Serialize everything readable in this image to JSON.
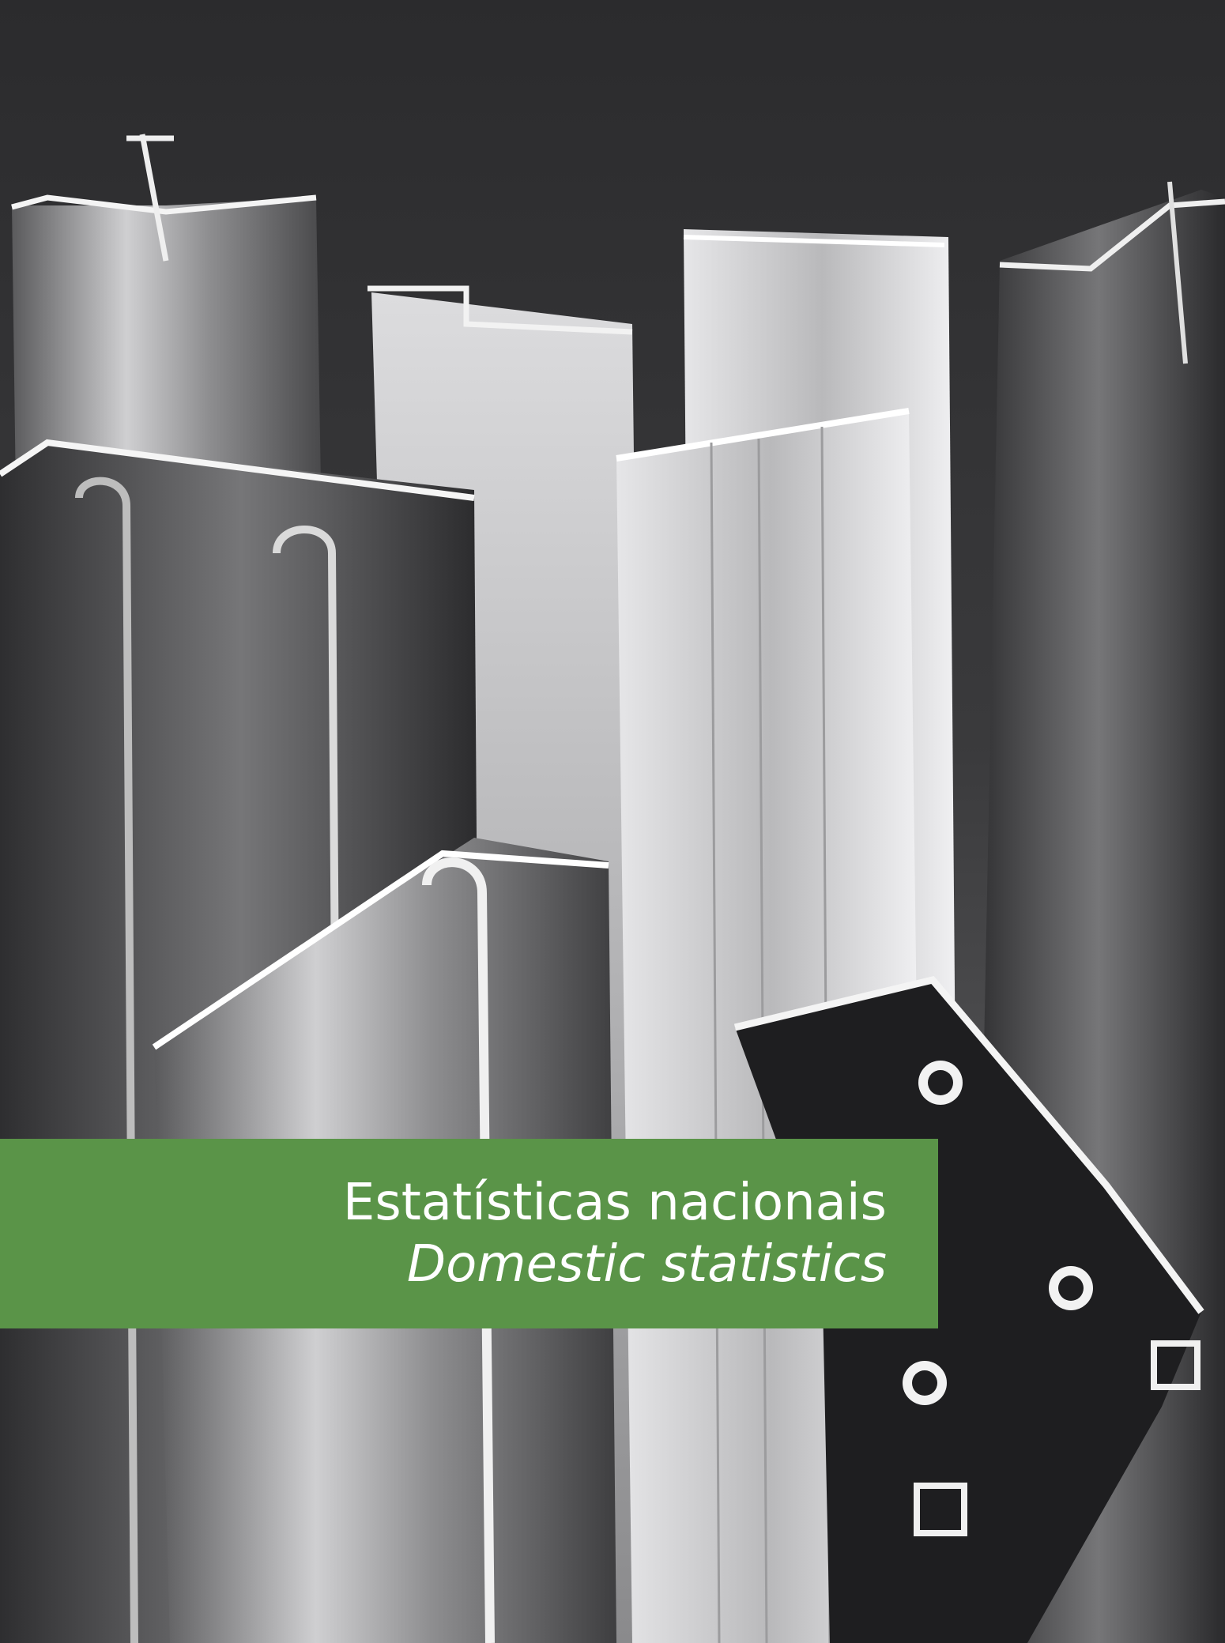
{
  "cover": {
    "title_pt": "Estatísticas nacionais",
    "title_en": "Domestic statistics",
    "banner_color": "#5a9448",
    "photo_subject": "aluminium-extrusion-profiles-photo"
  }
}
